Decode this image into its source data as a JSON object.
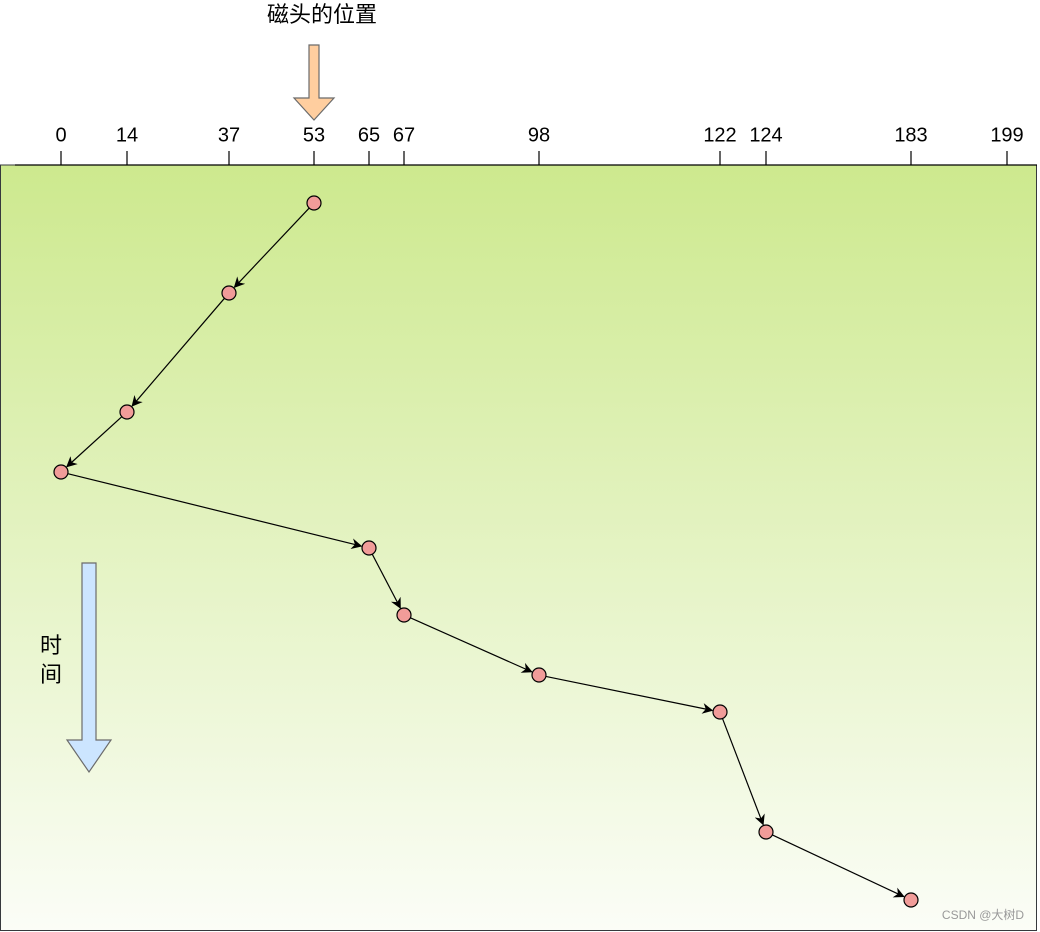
{
  "header": {
    "title": "磁头的位置"
  },
  "axis": {
    "ticks": [
      0,
      14,
      37,
      53,
      65,
      67,
      98,
      122,
      124,
      183,
      199
    ]
  },
  "visits": [
    53,
    37,
    14,
    0,
    65,
    67,
    98,
    122,
    124,
    183
  ],
  "time_label": [
    "时",
    "间"
  ],
  "watermark": "CSDN @大树D"
}
